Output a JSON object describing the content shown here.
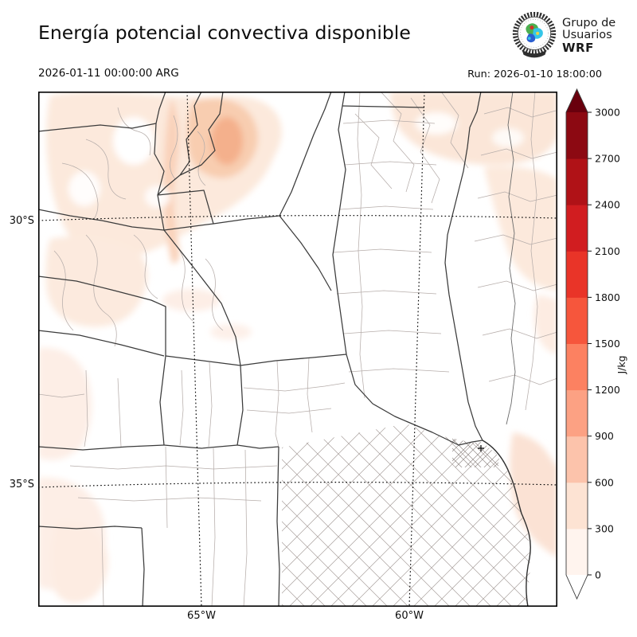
{
  "header": {
    "title": "Energía potencial convectiva disponible",
    "valid_time": "2026-01-11 00:00:00 ARG",
    "run_label": "Run: 2026-01-10 18:00:00",
    "logo": {
      "line1": "Grupo de",
      "line2": "Usuarios",
      "line3": "WRF"
    }
  },
  "map": {
    "x_tick_labels": [
      "65°W",
      "60°W"
    ],
    "y_tick_labels": [
      "30°S",
      "35°S"
    ]
  },
  "colorbar": {
    "unit_label": "J/kg",
    "tick_values": [
      "0",
      "300",
      "600",
      "900",
      "1200",
      "1500",
      "1800",
      "2100",
      "2400",
      "2700",
      "3000"
    ],
    "segment_colors_bottom_to_top": [
      "#fff4ee",
      "#fde3d3",
      "#fcc3ab",
      "#fca183",
      "#fc8161",
      "#f6563c",
      "#e93428",
      "#d11d20",
      "#b01217",
      "#8c0912"
    ],
    "extend_over_color": "#69000d",
    "extend_under_color": "#ffffff",
    "outline_color": "#3a3a3a"
  }
}
